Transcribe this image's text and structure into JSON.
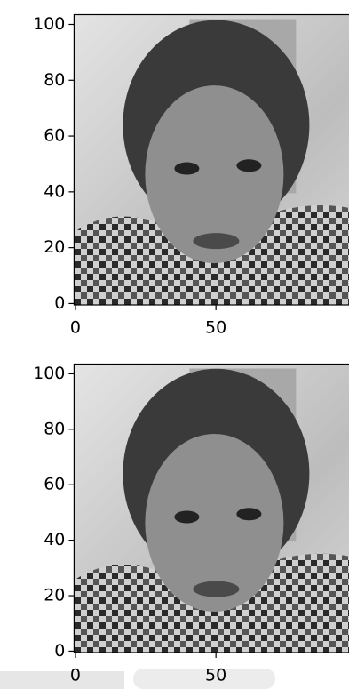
{
  "chart_data": [
    {
      "type": "image",
      "xlim": [
        -0.5,
        103.5
      ],
      "ylim": [
        103.5,
        -0.5
      ],
      "xticks": [
        0,
        50
      ],
      "yticks": [
        0,
        20,
        40,
        60,
        80,
        100
      ]
    },
    {
      "type": "image",
      "xlim": [
        -0.5,
        103.5
      ],
      "ylim": [
        103.5,
        -0.5
      ],
      "xticks": [
        0,
        50
      ],
      "yticks": [
        0,
        20,
        40,
        60,
        80,
        100
      ]
    }
  ]
}
